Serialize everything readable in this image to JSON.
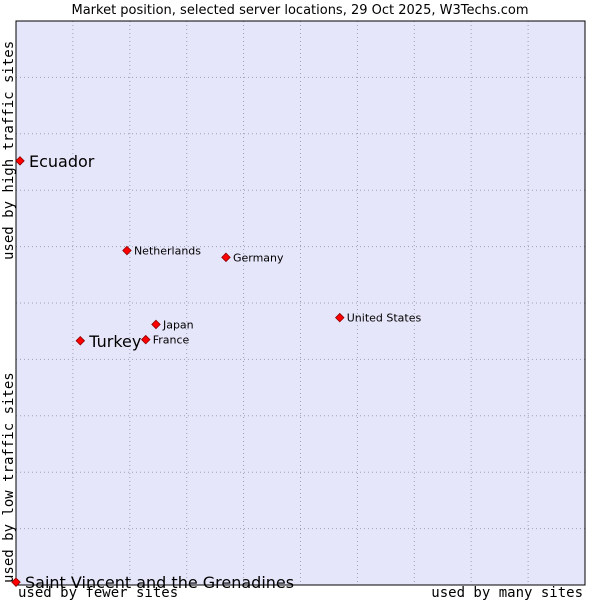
{
  "chart_data": {
    "type": "scatter",
    "title": "Market position, selected server locations, 29 Oct 2025, W3Techs.com",
    "xlabel_left": "used by fewer sites",
    "xlabel_right": "used by many sites",
    "ylabel_bottom": "used by low traffic sites",
    "ylabel_top": "used by high traffic sites",
    "xlim": [
      0,
      100
    ],
    "ylim": [
      0,
      100
    ],
    "grid": true,
    "points": [
      {
        "label": "Ecuador",
        "x": 0.7,
        "y": 75.2,
        "highlight": true
      },
      {
        "label": "Netherlands",
        "x": 19.5,
        "y": 59.3,
        "highlight": false
      },
      {
        "label": "Germany",
        "x": 36.9,
        "y": 58.1,
        "highlight": false
      },
      {
        "label": "United States",
        "x": 56.9,
        "y": 47.4,
        "highlight": false
      },
      {
        "label": "Japan",
        "x": 24.6,
        "y": 46.2,
        "highlight": false
      },
      {
        "label": "France",
        "x": 22.8,
        "y": 43.5,
        "highlight": false
      },
      {
        "label": "Turkey",
        "x": 11.3,
        "y": 43.3,
        "highlight": true
      },
      {
        "label": "Saint Vincent and the Grenadines",
        "x": 0.0,
        "y": 0.5,
        "highlight": true
      }
    ]
  },
  "colors": {
    "plot_background": "#e6e6fa",
    "grid": "#a0a0b4",
    "marker": "#ff0000",
    "marker_outline": "#8b0000"
  }
}
